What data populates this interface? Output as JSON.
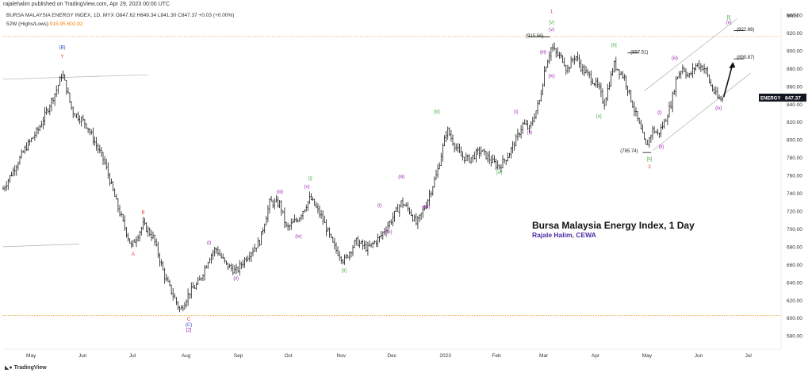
{
  "header": {
    "publisher": "rajalehalim published on TradingView.com, Apr 29, 2023 00:00 UTC",
    "symbol_line": "BURSA MALAYSIA ENERGY INDEX, 1D, MYX  O847.62  H849.34  L841.30  C847.37  +0.03 (+0.00%)",
    "indicator_label": "52W (Highs/Lows)",
    "indicator_high": "915.95",
    "indicator_low": "602.92"
  },
  "overlay": {
    "title": "Bursa Malaysia Energy Index, 1 Day",
    "author": "Rajale Halim, CEWA"
  },
  "footer": {
    "logo_icon": "tradingview-logo-icon",
    "logo_text": "TradingView"
  },
  "colors": {
    "candle": "#1a1a1a",
    "hline": "#f5a54a",
    "purple": "#9c27b0",
    "green": "#4caf50",
    "red": "#e53935",
    "blue": "#2b3fc0",
    "channel": "#b0b0b0",
    "badge_bg": "#131722"
  },
  "chart_data": {
    "type": "ohlc",
    "y_axis": {
      "unit": "MYR",
      "ylim": [
        565,
        948
      ],
      "ticks": [
        580,
        600,
        620,
        640,
        660,
        680,
        700,
        720,
        740,
        760,
        780,
        800,
        820,
        840,
        860,
        880,
        900,
        920,
        940
      ]
    },
    "x_axis": {
      "labels": [
        "May",
        "Jun",
        "Jul",
        "Aug",
        "Sep",
        "Oct",
        "Nov",
        "Dec",
        "2023",
        "Feb",
        "Mar",
        "Apr",
        "May",
        "Jun",
        "Jul"
      ]
    },
    "last_price": {
      "symbol": "ENERGY",
      "value": "847.37"
    },
    "horizontal_lines": [
      915.95,
      602.92
    ],
    "anchors": [
      [
        "2022-04-15",
        745
      ],
      [
        "2022-04-28",
        790
      ],
      [
        "2022-05-06",
        812
      ],
      [
        "2022-05-17",
        858
      ],
      [
        "2022-05-20",
        875
      ],
      [
        "2022-05-26",
        832
      ],
      [
        "2022-06-03",
        818
      ],
      [
        "2022-06-14",
        775
      ],
      [
        "2022-06-22",
        724
      ],
      [
        "2022-06-30",
        680
      ],
      [
        "2022-07-07",
        705
      ],
      [
        "2022-07-13",
        690
      ],
      [
        "2022-07-20",
        645
      ],
      [
        "2022-07-29",
        608
      ],
      [
        "2022-08-03",
        628
      ],
      [
        "2022-08-09",
        640
      ],
      [
        "2022-08-15",
        668
      ],
      [
        "2022-08-19",
        678
      ],
      [
        "2022-08-25",
        660
      ],
      [
        "2022-08-31",
        652
      ],
      [
        "2022-09-06",
        668
      ],
      [
        "2022-09-14",
        686
      ],
      [
        "2022-09-20",
        730
      ],
      [
        "2022-09-26",
        728
      ],
      [
        "2022-09-30",
        700
      ],
      [
        "2022-10-07",
        712
      ],
      [
        "2022-10-14",
        735
      ],
      [
        "2022-10-21",
        712
      ],
      [
        "2022-10-28",
        680
      ],
      [
        "2022-11-03",
        664
      ],
      [
        "2022-11-10",
        686
      ],
      [
        "2022-11-17",
        678
      ],
      [
        "2022-11-24",
        690
      ],
      [
        "2022-12-01",
        710
      ],
      [
        "2022-12-07",
        730
      ],
      [
        "2022-12-12",
        720
      ],
      [
        "2022-12-16",
        705
      ],
      [
        "2022-12-22",
        730
      ],
      [
        "2022-12-28",
        762
      ],
      [
        "2023-01-03",
        812
      ],
      [
        "2023-01-06",
        800
      ],
      [
        "2023-01-11",
        782
      ],
      [
        "2023-01-16",
        778
      ],
      [
        "2023-01-23",
        788
      ],
      [
        "2023-01-30",
        775
      ],
      [
        "2023-02-03",
        770
      ],
      [
        "2023-02-08",
        782
      ],
      [
        "2023-02-13",
        800
      ],
      [
        "2023-02-17",
        818
      ],
      [
        "2023-02-21",
        812
      ],
      [
        "2023-02-27",
        845
      ],
      [
        "2023-03-02",
        880
      ],
      [
        "2023-03-06",
        905
      ],
      [
        "2023-03-08",
        898
      ],
      [
        "2023-03-13",
        890
      ],
      [
        "2023-03-15",
        878
      ],
      [
        "2023-03-20",
        895
      ],
      [
        "2023-03-24",
        880
      ],
      [
        "2023-03-29",
        870
      ],
      [
        "2023-04-03",
        858
      ],
      [
        "2023-04-06",
        840
      ],
      [
        "2023-04-12",
        885
      ],
      [
        "2023-04-18",
        870
      ],
      [
        "2023-04-21",
        852
      ],
      [
        "2023-04-25",
        828
      ],
      [
        "2023-05-01",
        792
      ],
      [
        "2023-05-05",
        812
      ],
      [
        "2023-05-08",
        806
      ],
      [
        "2023-05-12",
        820
      ],
      [
        "2023-05-16",
        842
      ],
      [
        "2023-05-19",
        870
      ],
      [
        "2023-05-23",
        882
      ],
      [
        "2023-05-26",
        870
      ],
      [
        "2023-05-31",
        885
      ],
      [
        "2023-06-05",
        880
      ],
      [
        "2023-06-08",
        862
      ],
      [
        "2023-06-13",
        845
      ],
      [
        "2023-06-16",
        847
      ]
    ],
    "wave_labels": [
      {
        "text": "(B)",
        "color": "blue",
        "x": "2022-05-20",
        "y": 902
      },
      {
        "text": "Y",
        "color": "red",
        "x": "2022-05-20",
        "y": 892
      },
      {
        "text": "B",
        "color": "red",
        "x": "2022-07-07",
        "y": 717
      },
      {
        "text": "A",
        "color": "red",
        "x": "2022-07-01",
        "y": 670
      },
      {
        "text": "C",
        "color": "red",
        "x": "2022-08-03",
        "y": 597
      },
      {
        "text": "(C)",
        "color": "blue",
        "x": "2022-08-03",
        "y": 591
      },
      {
        "text": "[2]",
        "color": "purple",
        "x": "2022-08-03",
        "y": 585
      },
      {
        "text": "(i)",
        "color": "purple",
        "x": "2022-08-15",
        "y": 683
      },
      {
        "text": "(ii)",
        "color": "purple",
        "x": "2022-08-31",
        "y": 643
      },
      {
        "text": "(iii)",
        "color": "purple",
        "x": "2022-09-26",
        "y": 740
      },
      {
        "text": "(iv)",
        "color": "purple",
        "x": "2022-10-07",
        "y": 690
      },
      {
        "text": "[i]",
        "color": "green",
        "x": "2022-10-14",
        "y": 755
      },
      {
        "text": "(v)",
        "color": "purple",
        "x": "2022-10-12",
        "y": 746
      },
      {
        "text": "[ii]",
        "color": "green",
        "x": "2022-11-03",
        "y": 652
      },
      {
        "text": "(i)",
        "color": "purple",
        "x": "2022-11-24",
        "y": 725
      },
      {
        "text": "(ii)",
        "color": "purple",
        "x": "2022-11-30",
        "y": 695
      },
      {
        "text": "(iii)",
        "color": "purple",
        "x": "2022-12-07",
        "y": 757
      },
      {
        "text": "(iv)",
        "color": "purple",
        "x": "2022-12-22",
        "y": 723
      },
      {
        "text": "[iii]",
        "color": "green",
        "x": "2022-12-28",
        "y": 830
      },
      {
        "text": "[iv]",
        "color": "green",
        "x": "2023-02-03",
        "y": 762
      },
      {
        "text": "(i)",
        "color": "purple",
        "x": "2023-02-13",
        "y": 830
      },
      {
        "text": "(ii)",
        "color": "purple",
        "x": "2023-02-21",
        "y": 807
      },
      {
        "text": "(iii)",
        "color": "purple",
        "x": "2023-03-01",
        "y": 897
      },
      {
        "text": "(iv)",
        "color": "purple",
        "x": "2023-03-06",
        "y": 870
      },
      {
        "text": "(v)",
        "color": "purple",
        "x": "2023-03-06",
        "y": 922
      },
      {
        "text": "[v]",
        "color": "green",
        "x": "2023-03-06",
        "y": 930
      },
      {
        "text": "1",
        "color": "red",
        "x": "2023-03-06",
        "y": 942
      },
      {
        "text": "(915.56)",
        "color": "dark",
        "x": "2023-02-24",
        "y": 915
      },
      {
        "text": "[a]",
        "color": "green",
        "x": "2023-04-03",
        "y": 825
      },
      {
        "text": "[b]",
        "color": "green",
        "x": "2023-04-12",
        "y": 905
      },
      {
        "text": "(897.51)",
        "color": "dark",
        "x": "2023-04-27",
        "y": 897
      },
      {
        "text": "(785.74)",
        "color": "dark",
        "x": "2023-04-21",
        "y": 786
      },
      {
        "text": "[b]",
        "color": "green",
        "x": "2023-05-03",
        "y": 777
      },
      {
        "text": "2",
        "color": "red",
        "x": "2023-05-03",
        "y": 768
      },
      {
        "text": "(i)",
        "color": "purple",
        "x": "2023-05-09",
        "y": 829
      },
      {
        "text": "(ii)",
        "color": "purple",
        "x": "2023-05-10",
        "y": 791
      },
      {
        "text": "(iii)",
        "color": "purple",
        "x": "2023-05-18",
        "y": 890
      },
      {
        "text": "(iv)",
        "color": "purple",
        "x": "2023-06-13",
        "y": 834
      },
      {
        "text": "[i]",
        "color": "green",
        "x": "2023-06-19",
        "y": 936
      },
      {
        "text": "(v)",
        "color": "purple",
        "x": "2023-06-19",
        "y": 930
      },
      {
        "text": "(922.66)",
        "color": "dark",
        "x": "2023-06-29",
        "y": 922
      },
      {
        "text": "(890.87)",
        "color": "dark",
        "x": "2023-06-29",
        "y": 891
      }
    ]
  }
}
